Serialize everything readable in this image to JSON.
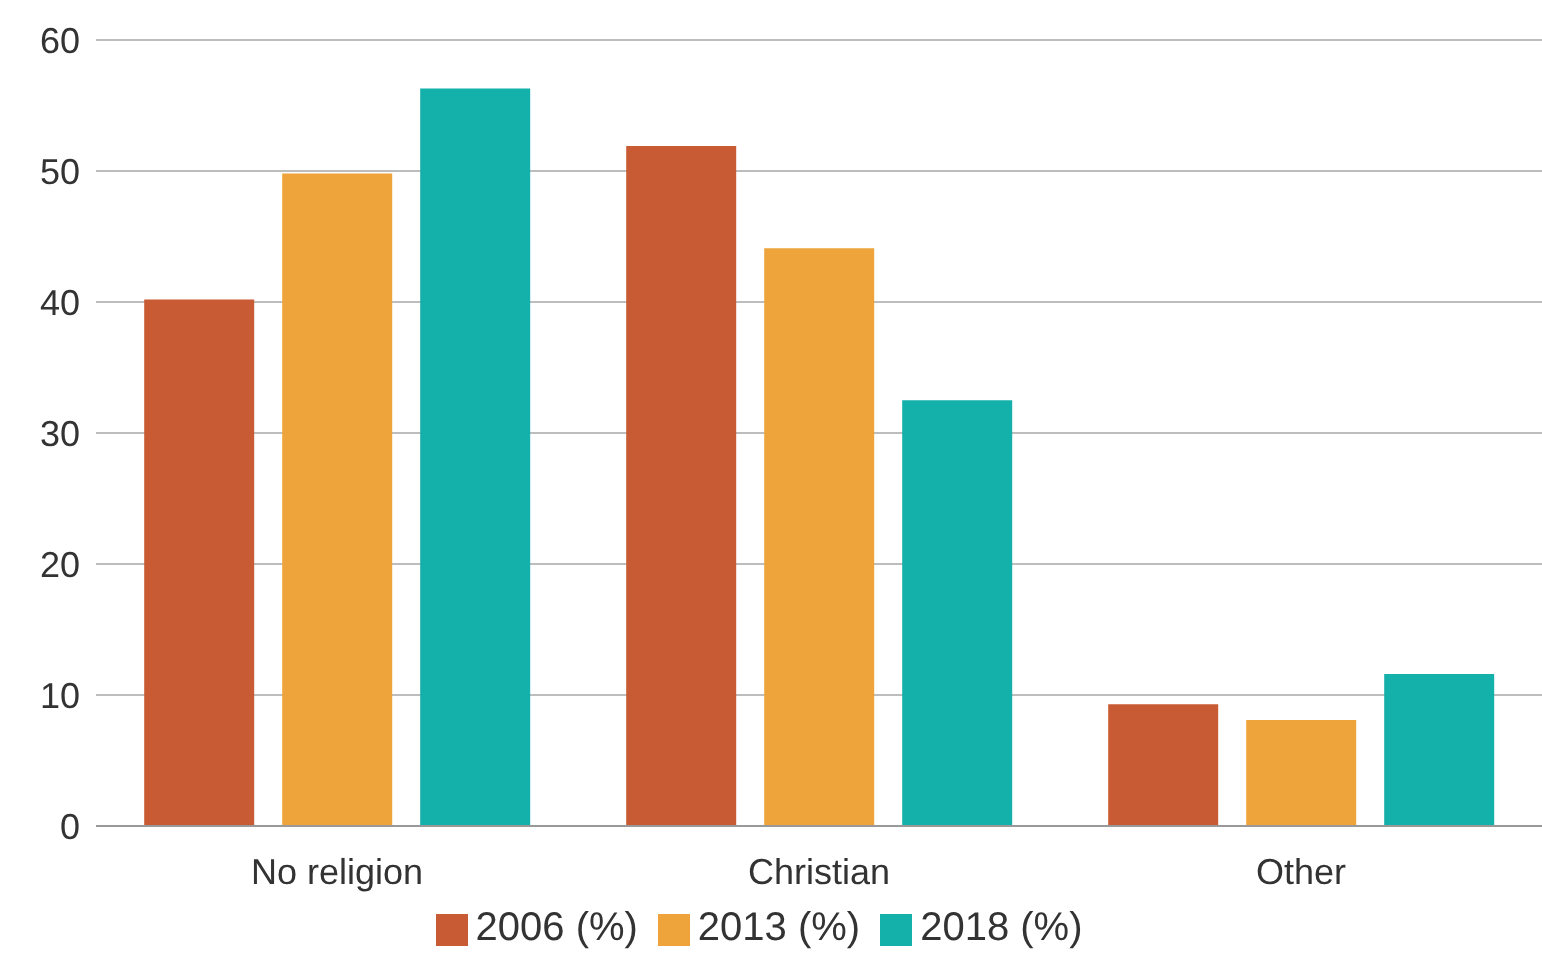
{
  "chart_data": {
    "type": "bar",
    "categories": [
      "No religion",
      "Christian",
      "Other"
    ],
    "series": [
      {
        "name": "2006 (%)",
        "color": "#c85b33",
        "values": [
          40.2,
          51.9,
          9.3
        ]
      },
      {
        "name": "2013 (%)",
        "color": "#eea43a",
        "values": [
          49.8,
          44.1,
          8.1
        ]
      },
      {
        "name": "2018 (%)",
        "color": "#14b0aa",
        "values": [
          56.3,
          32.5,
          11.6
        ]
      }
    ],
    "ylim": [
      0,
      60
    ],
    "yticks": [
      0,
      10,
      20,
      30,
      40,
      50,
      60
    ],
    "grid": "y",
    "legend": "bottom"
  }
}
